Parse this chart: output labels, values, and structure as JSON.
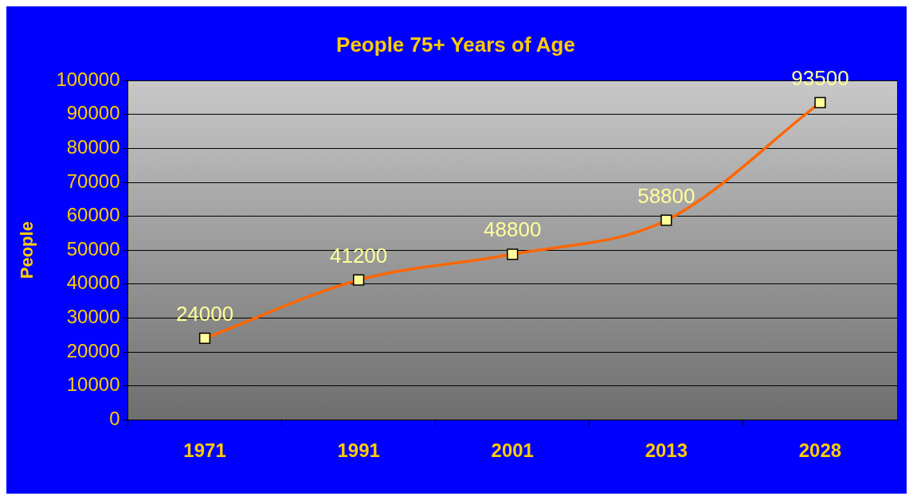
{
  "chart_data": {
    "type": "line",
    "title": "People 75+ Years of Age",
    "ylabel": "People",
    "categories": [
      "1971",
      "1991",
      "2001",
      "2013",
      "2028"
    ],
    "series": [
      {
        "color": "#ff6600",
        "values": [
          24000,
          41200,
          48800,
          58800,
          93500
        ]
      }
    ],
    "ylim": [
      0,
      100000
    ],
    "yticks": [
      0,
      10000,
      20000,
      30000,
      40000,
      50000,
      60000,
      70000,
      80000,
      90000,
      100000
    ],
    "grid": "y",
    "legend": false,
    "marker": "square",
    "line_style": "solid",
    "data_labels": true
  }
}
